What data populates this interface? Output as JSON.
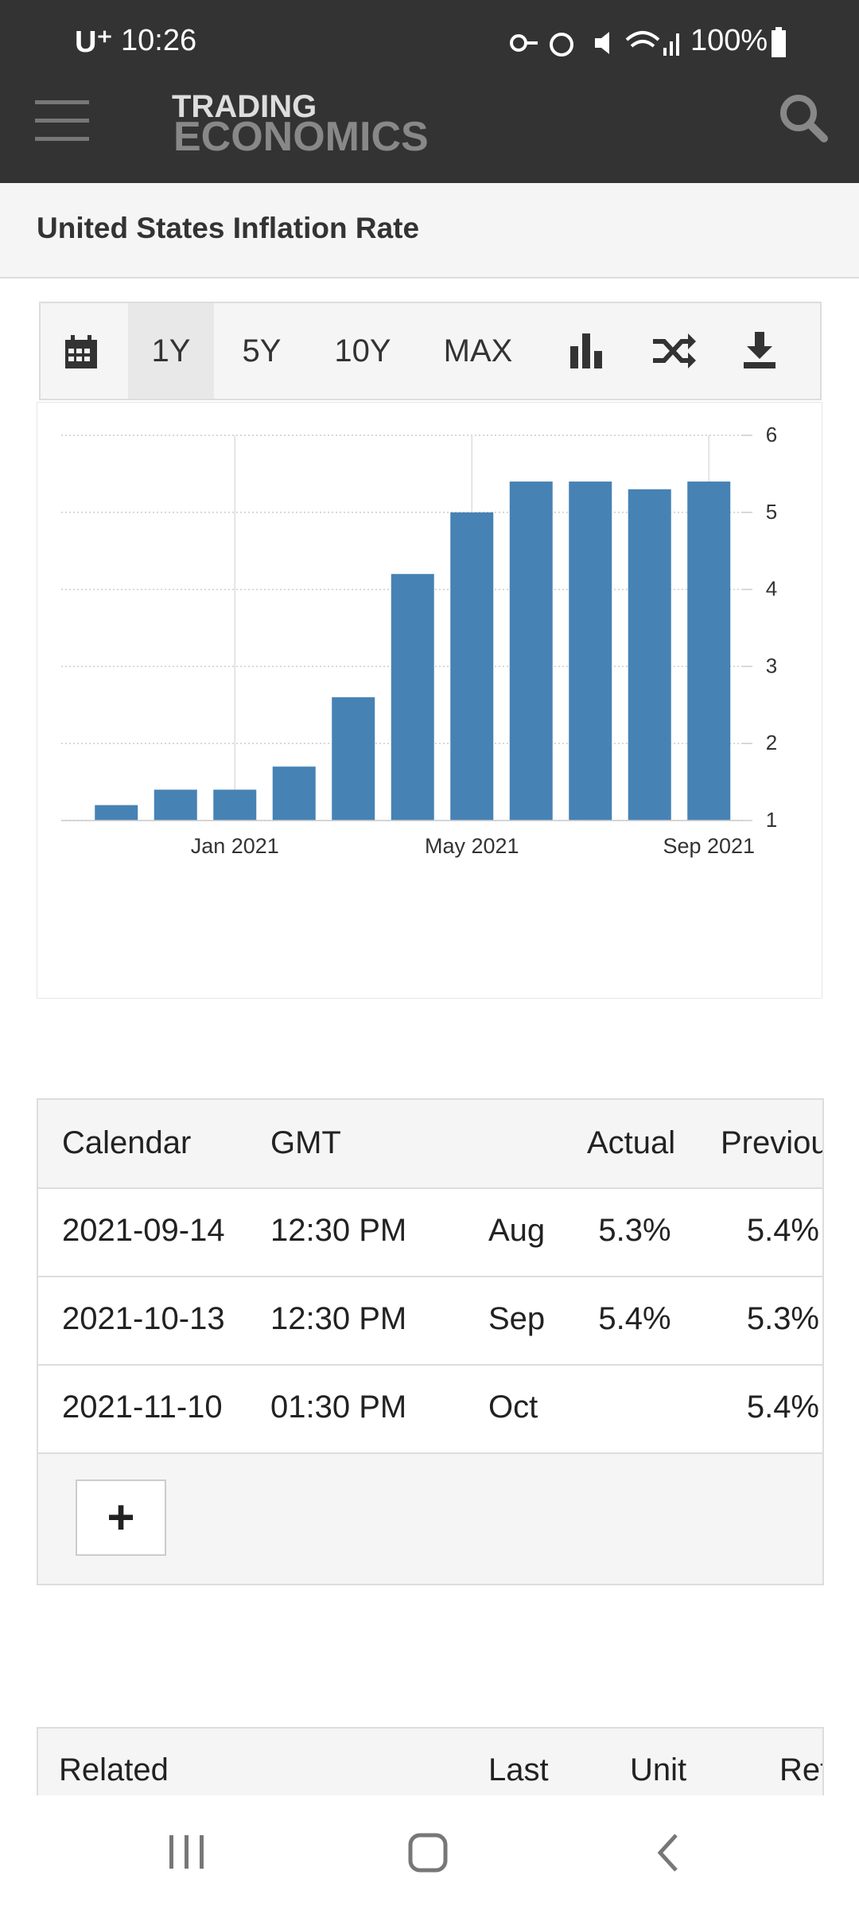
{
  "status_bar": {
    "carrier": "U⁺",
    "time": "10:26",
    "battery": "100%"
  },
  "header": {
    "logo_top": "TRADING",
    "logo_bottom": "ECONOMICS"
  },
  "page_title": "United States Inflation Rate",
  "toolbar": {
    "ranges": [
      "1Y",
      "5Y",
      "10Y",
      "MAX"
    ],
    "selected_index": 0
  },
  "chart_data": {
    "type": "bar",
    "categories": [
      null,
      null,
      "Jan 2021",
      null,
      null,
      null,
      "May 2021",
      null,
      null,
      null,
      "Sep 2021"
    ],
    "values": [
      1.2,
      1.4,
      1.4,
      1.7,
      2.6,
      4.2,
      5.0,
      5.4,
      5.4,
      5.3,
      5.4
    ],
    "color": "#4682b4",
    "ylim": [
      1,
      6
    ],
    "yticks": [
      1,
      2,
      3,
      4,
      5,
      6
    ],
    "grid": true
  },
  "calendar_table": {
    "headers": [
      "Calendar",
      "GMT",
      "Actual",
      "Previous"
    ],
    "rows": [
      {
        "date": "2021-09-14",
        "time": "12:30 PM",
        "reference": "Aug",
        "actual": "5.3%",
        "previous": "5.4%"
      },
      {
        "date": "2021-10-13",
        "time": "12:30 PM",
        "reference": "Sep",
        "actual": "5.4%",
        "previous": "5.3%"
      },
      {
        "date": "2021-11-10",
        "time": "01:30 PM",
        "reference": "Oct",
        "previous": "5.4%"
      }
    ],
    "more_button": "+"
  },
  "related_table": {
    "headers": [
      "Related",
      "Last",
      "Unit",
      "Reference"
    ]
  }
}
